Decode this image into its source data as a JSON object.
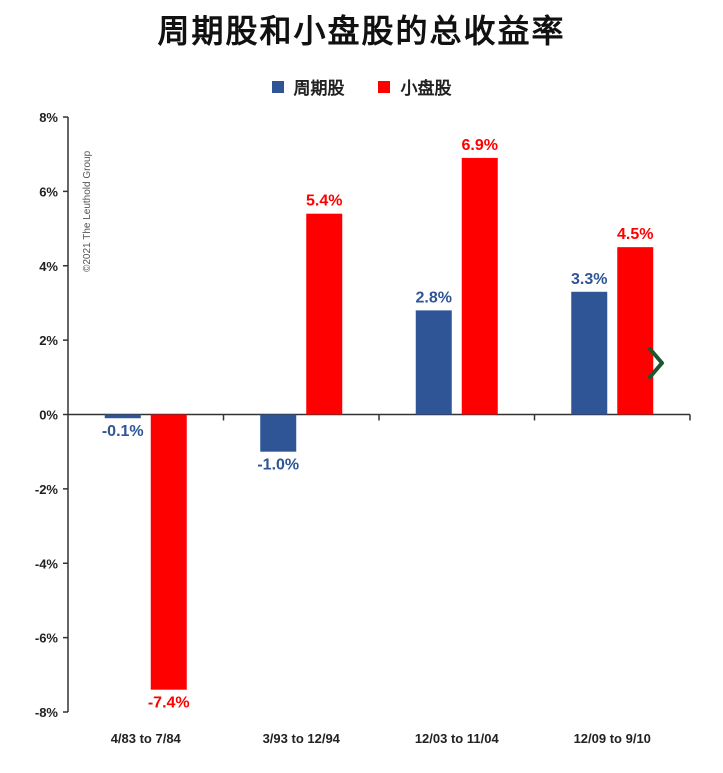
{
  "chart_data": {
    "type": "bar",
    "title": "周期股和小盘股的总收益率",
    "categories": [
      "4/83 to 7/84",
      "3/93 to 12/94",
      "12/03 to 11/04",
      "12/09 to 9/10"
    ],
    "series": [
      {
        "name": "周期股",
        "color": "#2f5597",
        "values": [
          -0.1,
          -1.0,
          2.8,
          3.3
        ],
        "labels": [
          "-0.1%",
          "-1.0%",
          "2.8%",
          "3.3%"
        ]
      },
      {
        "name": "小盘股",
        "color": "#ff0000",
        "values": [
          -7.4,
          5.4,
          6.9,
          4.5
        ],
        "labels": [
          "-7.4%",
          "5.4%",
          "6.9%",
          "4.5%"
        ]
      }
    ],
    "ylim": [
      -8,
      8
    ],
    "yticks": [
      8,
      6,
      4,
      2,
      0,
      -2,
      -4,
      -6,
      -8
    ],
    "ytick_labels": [
      "8%",
      "6%",
      "4%",
      "2%",
      "0%",
      "-2%",
      "-4%",
      "-6%",
      "-8%"
    ],
    "xlabel": "",
    "ylabel": "",
    "grid": false,
    "legend_position": "top-center",
    "watermark": "©2021 The Leuthold Group"
  },
  "nav": {
    "arrow_color": "#1e5631",
    "icon": "chevron-right-icon"
  }
}
